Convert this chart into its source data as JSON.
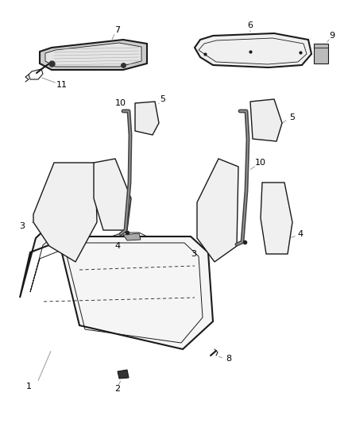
{
  "background_color": "#ffffff",
  "line_color": "#1a1a1a",
  "label_color": "#000000",
  "label_fontsize": 8.5,
  "fig_width": 4.38,
  "fig_height": 5.33,
  "dpi": 100
}
